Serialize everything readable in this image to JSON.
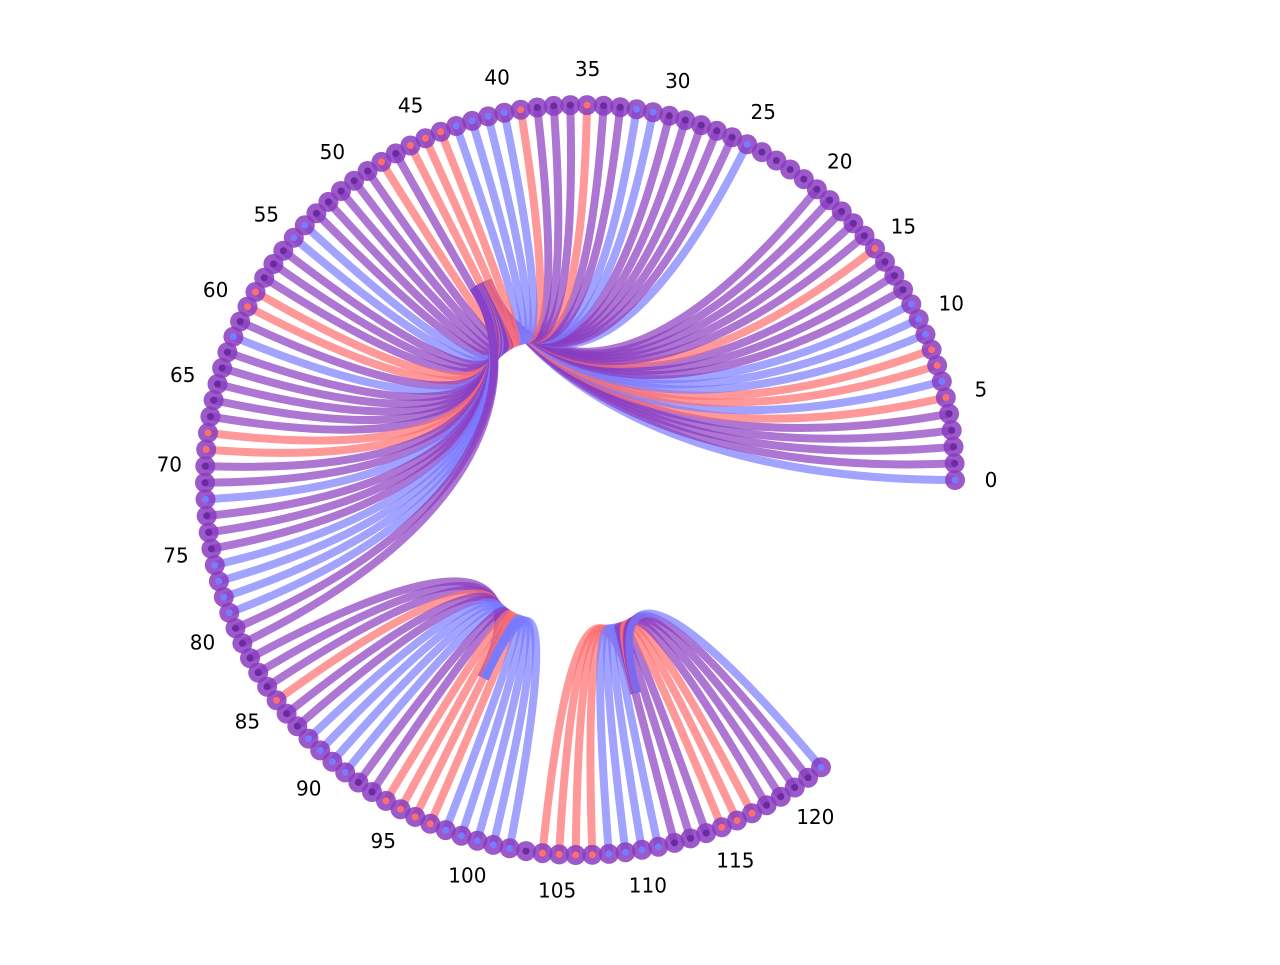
{
  "chart_data": {
    "type": "chord-arc-diagram",
    "node_count": 123,
    "tick_step": 5,
    "tick_labels": [
      "0",
      "5",
      "10",
      "15",
      "20",
      "25",
      "30",
      "35",
      "40",
      "45",
      "50",
      "55",
      "60",
      "65",
      "70",
      "75",
      "80",
      "85",
      "90",
      "95",
      "100",
      "105",
      "110",
      "115",
      "120"
    ],
    "colors": {
      "red": "#ff6e6e",
      "blue": "#7a7aff",
      "purple": "#8a3cc0"
    },
    "link_groups": [
      {
        "target": 46,
        "sources": [
          [
            0,
            "blue"
          ],
          [
            1,
            "purple"
          ],
          [
            2,
            "purple"
          ],
          [
            3,
            "purple"
          ],
          [
            4,
            "purple"
          ],
          [
            5,
            "red"
          ],
          [
            6,
            "blue"
          ],
          [
            7,
            "red"
          ],
          [
            8,
            "red"
          ],
          [
            9,
            "blue"
          ],
          [
            10,
            "blue"
          ],
          [
            11,
            "blue"
          ],
          [
            12,
            "purple"
          ],
          [
            13,
            "purple"
          ],
          [
            14,
            "purple"
          ],
          [
            15,
            "red"
          ],
          [
            16,
            "purple"
          ],
          [
            17,
            "purple"
          ],
          [
            18,
            "purple"
          ],
          [
            19,
            "purple"
          ],
          [
            20,
            "purple"
          ],
          [
            25,
            "blue"
          ],
          [
            26,
            "purple"
          ],
          [
            27,
            "purple"
          ],
          [
            28,
            "purple"
          ],
          [
            29,
            "purple"
          ],
          [
            30,
            "purple"
          ],
          [
            31,
            "blue"
          ],
          [
            32,
            "blue"
          ],
          [
            33,
            "purple"
          ],
          [
            34,
            "purple"
          ],
          [
            35,
            "red"
          ],
          [
            36,
            "purple"
          ],
          [
            37,
            "purple"
          ],
          [
            38,
            "purple"
          ],
          [
            39,
            "red"
          ],
          [
            40,
            "blue"
          ],
          [
            41,
            "blue"
          ],
          [
            42,
            "blue"
          ],
          [
            43,
            "blue"
          ],
          [
            44,
            "red"
          ],
          [
            45,
            "red"
          ],
          [
            46,
            "red"
          ],
          [
            47,
            "purple"
          ],
          [
            48,
            "red"
          ],
          [
            49,
            "purple"
          ],
          [
            50,
            "purple"
          ],
          [
            51,
            "purple"
          ],
          [
            52,
            "purple"
          ],
          [
            53,
            "purple"
          ],
          [
            54,
            "blue"
          ],
          [
            55,
            "blue"
          ],
          [
            56,
            "purple"
          ],
          [
            57,
            "purple"
          ],
          [
            58,
            "purple"
          ],
          [
            59,
            "red"
          ],
          [
            60,
            "red"
          ],
          [
            61,
            "purple"
          ],
          [
            62,
            "blue"
          ],
          [
            63,
            "purple"
          ],
          [
            64,
            "purple"
          ],
          [
            65,
            "purple"
          ],
          [
            66,
            "purple"
          ],
          [
            67,
            "purple"
          ],
          [
            68,
            "red"
          ],
          [
            69,
            "red"
          ],
          [
            70,
            "purple"
          ],
          [
            71,
            "purple"
          ],
          [
            72,
            "blue"
          ],
          [
            73,
            "purple"
          ],
          [
            74,
            "purple"
          ],
          [
            75,
            "purple"
          ],
          [
            76,
            "blue"
          ],
          [
            77,
            "blue"
          ],
          [
            78,
            "blue"
          ],
          [
            79,
            "blue"
          ],
          [
            80,
            "purple"
          ],
          [
            81,
            "purple"
          ]
        ]
      },
      {
        "target": 96,
        "sources": [
          [
            82,
            "purple"
          ],
          [
            83,
            "purple"
          ],
          [
            84,
            "purple"
          ],
          [
            85,
            "red"
          ],
          [
            86,
            "purple"
          ],
          [
            87,
            "purple"
          ],
          [
            88,
            "blue"
          ],
          [
            89,
            "blue"
          ],
          [
            90,
            "blue"
          ],
          [
            91,
            "blue"
          ],
          [
            92,
            "purple"
          ],
          [
            93,
            "purple"
          ],
          [
            94,
            "red"
          ],
          [
            95,
            "red"
          ],
          [
            96,
            "red"
          ],
          [
            97,
            "red"
          ],
          [
            98,
            "blue"
          ],
          [
            99,
            "blue"
          ],
          [
            100,
            "blue"
          ],
          [
            101,
            "blue"
          ],
          [
            102,
            "blue"
          ]
        ]
      },
      {
        "target": 112,
        "sources": [
          [
            104,
            "red"
          ],
          [
            105,
            "red"
          ],
          [
            106,
            "red"
          ],
          [
            107,
            "red"
          ],
          [
            108,
            "blue"
          ],
          [
            109,
            "blue"
          ],
          [
            110,
            "blue"
          ],
          [
            111,
            "blue"
          ],
          [
            112,
            "purple"
          ],
          [
            113,
            "purple"
          ],
          [
            114,
            "purple"
          ],
          [
            115,
            "red"
          ],
          [
            116,
            "red"
          ],
          [
            117,
            "red"
          ],
          [
            118,
            "purple"
          ],
          [
            119,
            "purple"
          ],
          [
            120,
            "purple"
          ],
          [
            121,
            "purple"
          ],
          [
            122,
            "blue"
          ]
        ]
      }
    ]
  }
}
